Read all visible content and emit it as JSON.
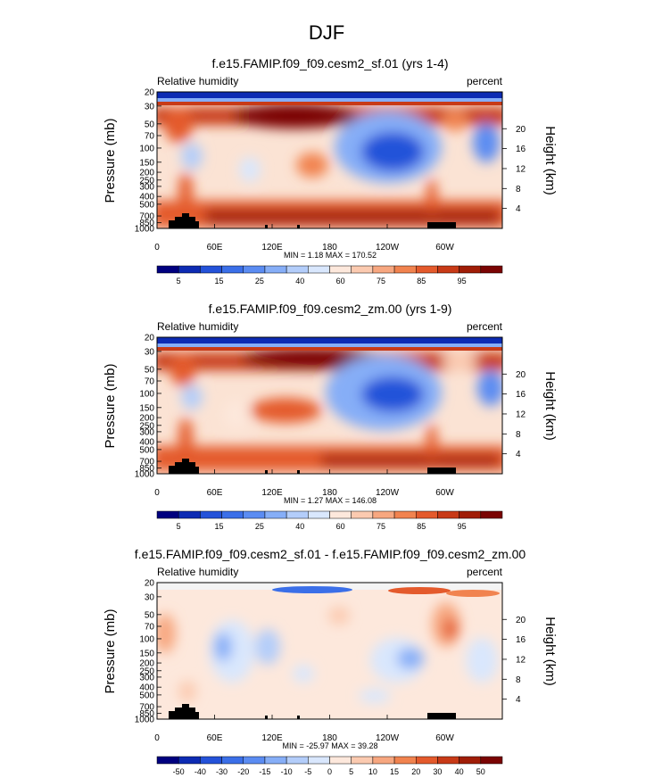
{
  "figure_title": "DJF",
  "chart_data": [
    {
      "type": "heatmap",
      "title": "f.e15.FAMIP.f09_f09.cesm2_sf.01 (yrs 1-4)",
      "left_label": "Relative humidity",
      "right_label": "percent",
      "ylabel": "Pressure (mb)",
      "ylabel_right": "Height (km)",
      "xticks": [
        "0",
        "60E",
        "120E",
        "180",
        "120W",
        "60W"
      ],
      "yticks": [
        "20",
        "30",
        "50",
        "70",
        "100",
        "150",
        "200",
        "250",
        "300",
        "400",
        "500",
        "700",
        "850",
        "1000"
      ],
      "height_ticks": [
        "20",
        "16",
        "12",
        "8",
        "4"
      ],
      "stats": "MIN =  1.18  MAX = 170.52",
      "colorbar_labels": [
        "5",
        "15",
        "25",
        "40",
        "60",
        "75",
        "85",
        "95"
      ],
      "colors": [
        "#00007f",
        "#0d2bb3",
        "#2452d9",
        "#3b6fe8",
        "#5b8cf2",
        "#86aef7",
        "#b3cdfa",
        "#d9e7fd",
        "#fde8dc",
        "#fbcab0",
        "#f7a780",
        "#f1834f",
        "#e45a2c",
        "#c83a17",
        "#a01d07",
        "#7a0403"
      ]
    },
    {
      "type": "heatmap",
      "title": "f.e15.FAMIP.f09_f09.cesm2_zm.00 (yrs 1-9)",
      "left_label": "Relative humidity",
      "right_label": "percent",
      "ylabel": "Pressure (mb)",
      "ylabel_right": "Height (km)",
      "xticks": [
        "0",
        "60E",
        "120E",
        "180",
        "120W",
        "60W"
      ],
      "yticks": [
        "20",
        "30",
        "50",
        "70",
        "100",
        "150",
        "200",
        "250",
        "300",
        "400",
        "500",
        "700",
        "850",
        "1000"
      ],
      "height_ticks": [
        "20",
        "16",
        "12",
        "8",
        "4"
      ],
      "stats": "MIN =  1.27  MAX = 146.08",
      "colorbar_labels": [
        "5",
        "15",
        "25",
        "40",
        "60",
        "75",
        "85",
        "95"
      ],
      "colors": [
        "#00007f",
        "#0d2bb3",
        "#2452d9",
        "#3b6fe8",
        "#5b8cf2",
        "#86aef7",
        "#b3cdfa",
        "#d9e7fd",
        "#fde8dc",
        "#fbcab0",
        "#f7a780",
        "#f1834f",
        "#e45a2c",
        "#c83a17",
        "#a01d07",
        "#7a0403"
      ]
    },
    {
      "type": "heatmap",
      "title": "f.e15.FAMIP.f09_f09.cesm2_sf.01 - f.e15.FAMIP.f09_f09.cesm2_zm.00",
      "left_label": "Relative humidity",
      "right_label": "percent",
      "ylabel": "Pressure (mb)",
      "ylabel_right": "Height (km)",
      "xticks": [
        "0",
        "60E",
        "120E",
        "180",
        "120W",
        "60W"
      ],
      "yticks": [
        "20",
        "30",
        "50",
        "70",
        "100",
        "150",
        "200",
        "250",
        "300",
        "400",
        "500",
        "700",
        "850",
        "1000"
      ],
      "height_ticks": [
        "20",
        "16",
        "12",
        "8",
        "4"
      ],
      "stats": "MIN = -25.97  MAX = 39.28",
      "colorbar_labels": [
        "-50",
        "-40",
        "-30",
        "-20",
        "-15",
        "-10",
        "-5",
        "0",
        "5",
        "10",
        "15",
        "20",
        "30",
        "40",
        "50"
      ],
      "colors": [
        "#00007f",
        "#0d2bb3",
        "#2452d9",
        "#3b6fe8",
        "#5b8cf2",
        "#86aef7",
        "#b3cdfa",
        "#d9e7fd",
        "#fde8dc",
        "#fbcab0",
        "#f7a780",
        "#f1834f",
        "#e45a2c",
        "#c83a17",
        "#a01d07",
        "#7a0403"
      ]
    }
  ]
}
